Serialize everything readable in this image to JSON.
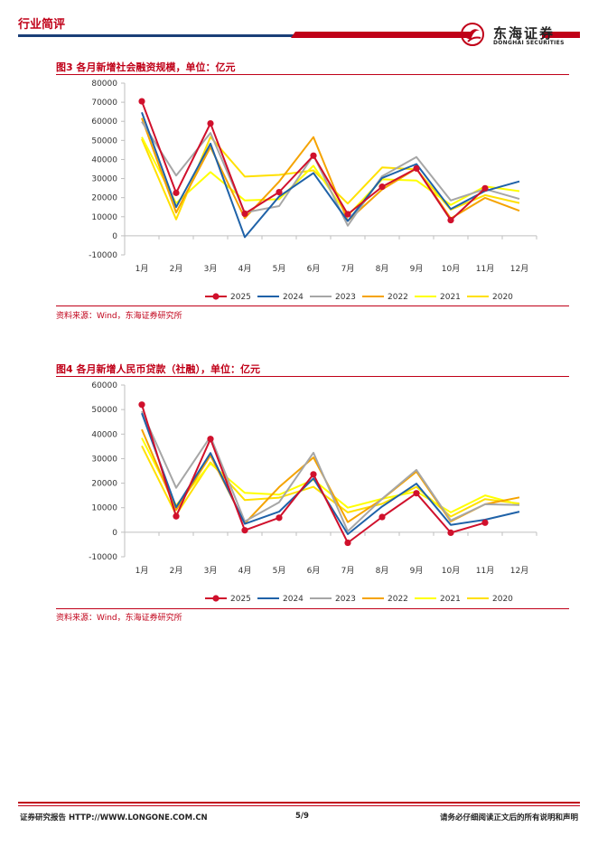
{
  "header": {
    "section": "行业简评",
    "logo_cn": "东海证券",
    "logo_en": "DONGHAI SECURITIES"
  },
  "figures": [
    {
      "title": "图3 各月新增社会融资规模，单位：亿元",
      "source": "资料来源：Wind，东海证券研究所"
    },
    {
      "title": "图4 各月新增人民币贷款（社融），单位：亿元",
      "source": "资料来源：Wind，东海证券研究所"
    }
  ],
  "colors": {
    "accent": "#c00018",
    "navy": "#1b3f78"
  },
  "chart_data": [
    {
      "type": "line",
      "categories": [
        "1月",
        "2月",
        "3月",
        "4月",
        "5月",
        "6月",
        "7月",
        "8月",
        "9月",
        "10月",
        "11月",
        "12月"
      ],
      "ylim": [
        -10000,
        80000
      ],
      "yticks": [
        -10000,
        0,
        10000,
        20000,
        30000,
        40000,
        50000,
        60000,
        70000,
        80000
      ],
      "legend_position": "bottom",
      "grid": false,
      "series": [
        {
          "name": "2025",
          "color": "#d0102c",
          "marker": true,
          "values": [
            70500,
            22500,
            58900,
            11600,
            22900,
            42000,
            11300,
            25700,
            35300,
            8200,
            24900,
            null
          ]
        },
        {
          "name": "2024",
          "color": "#1f62a8",
          "marker": false,
          "values": [
            64700,
            15000,
            48300,
            -700,
            20600,
            32900,
            7700,
            30300,
            37600,
            14000,
            23500,
            28500
          ]
        },
        {
          "name": "2023",
          "color": "#a6a6a6",
          "marker": false,
          "values": [
            59800,
            31600,
            53900,
            12200,
            15600,
            42200,
            5300,
            31200,
            41300,
            18500,
            24500,
            19300
          ]
        },
        {
          "name": "2022",
          "color": "#f5a300",
          "marker": false,
          "values": [
            61700,
            12200,
            46500,
            9300,
            28400,
            51700,
            7800,
            24300,
            35300,
            9100,
            19900,
            13100
          ]
        },
        {
          "name": "2021",
          "color": "#ffff00",
          "marker": false,
          "values": [
            51700,
            17100,
            33400,
            18500,
            19200,
            36700,
            10600,
            29600,
            29000,
            16200,
            25900,
            23400
          ]
        },
        {
          "name": "2020",
          "color": "#ffe000",
          "marker": false,
          "values": [
            50700,
            8600,
            51800,
            31000,
            31900,
            34300,
            16900,
            35800,
            34800,
            13700,
            21300,
            17200
          ]
        }
      ]
    },
    {
      "type": "line",
      "categories": [
        "1月",
        "2月",
        "3月",
        "4月",
        "5月",
        "6月",
        "7月",
        "8月",
        "9月",
        "10月",
        "11月",
        "12月"
      ],
      "ylim": [
        -10000,
        60000
      ],
      "yticks": [
        -10000,
        0,
        10000,
        20000,
        30000,
        40000,
        50000,
        60000
      ],
      "legend_position": "bottom",
      "grid": false,
      "series": [
        {
          "name": "2025",
          "color": "#d0102c",
          "marker": true,
          "values": [
            52000,
            6500,
            38000,
            800,
            5900,
            23600,
            -4300,
            6200,
            15900,
            -200,
            3900,
            null
          ]
        },
        {
          "name": "2024",
          "color": "#1f62a8",
          "marker": false,
          "values": [
            48500,
            10200,
            32300,
            3400,
            8400,
            21900,
            -800,
            10500,
            19800,
            3000,
            5100,
            8400
          ]
        },
        {
          "name": "2023",
          "color": "#a6a6a6",
          "marker": false,
          "values": [
            49300,
            18100,
            39000,
            4400,
            12200,
            32400,
            400,
            13600,
            25400,
            4800,
            11400,
            11100
          ]
        },
        {
          "name": "2022",
          "color": "#f5a300",
          "marker": false,
          "values": [
            41900,
            9100,
            31300,
            3600,
            18400,
            30500,
            4100,
            13500,
            24700,
            4400,
            11400,
            14200
          ]
        },
        {
          "name": "2021",
          "color": "#ffff00",
          "marker": false,
          "values": [
            38400,
            10900,
            28000,
            16100,
            15300,
            21400,
            10000,
            13600,
            16600,
            8100,
            15000,
            11300
          ]
        },
        {
          "name": "2020",
          "color": "#ffe000",
          "marker": false,
          "values": [
            35200,
            7100,
            28500,
            13100,
            14100,
            18500,
            8100,
            11600,
            18500,
            6400,
            13500,
            11700
          ]
        }
      ]
    }
  ],
  "footer": {
    "left": "证券研究报告  HTTP://WWW.LONGONE.COM.CN",
    "page": "5/9",
    "right": "请务必仔细阅读正文后的所有说明和声明"
  }
}
